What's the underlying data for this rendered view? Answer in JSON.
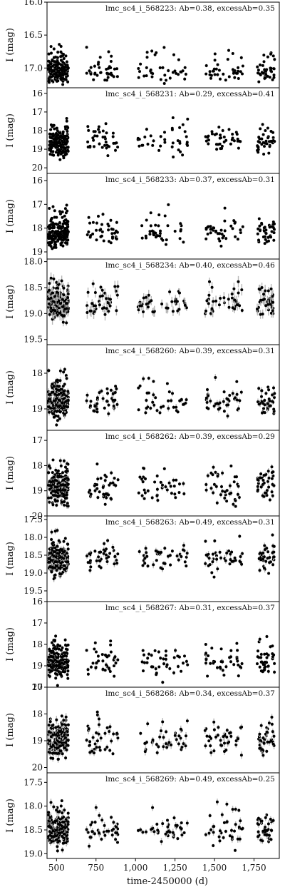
{
  "chart_data": {
    "type": "scatter",
    "x_label": "time-2450000 (d)",
    "x_ticks": [
      500,
      750,
      1000,
      1250,
      1500,
      1750
    ],
    "x_tick_labels": [
      "500",
      "750",
      "1,000",
      "1,250",
      "1,500",
      "1,750"
    ],
    "x_range": [
      440,
      1910
    ],
    "y_label": "I (mag)",
    "y_inverted": true,
    "seasons": [
      [
        450,
        575
      ],
      [
        690,
        890
      ],
      [
        1015,
        1330
      ],
      [
        1440,
        1680
      ],
      [
        1770,
        1880
      ]
    ],
    "marker_color": "#000000",
    "error_bar_color": "#b8b8b8",
    "panels": [
      {
        "label": "lmc_sc4_i_568223: Ab=0.38, excessAb=0.35",
        "ylim": [
          16.0,
          17.3
        ],
        "ticks": [
          16.0,
          16.5,
          17.0
        ],
        "tick_labels": [
          "16.0",
          "16.5",
          "17.0"
        ],
        "mean": 17.05,
        "amp": 0.38,
        "scatter": 0.07,
        "max_err": 0.03
      },
      {
        "label": "lmc_sc4_i_568231: Ab=0.29, excessAb=0.41",
        "ylim": [
          15.7,
          20.3
        ],
        "ticks": [
          16,
          17,
          18,
          19,
          20
        ],
        "tick_labels": [
          "16",
          "17",
          "18",
          "19",
          "20"
        ],
        "mean": 18.6,
        "amp": 1.1,
        "scatter": 0.35,
        "max_err": 0.1
      },
      {
        "label": "lmc_sc4_i_568233: Ab=0.37, excessAb=0.31",
        "ylim": [
          15.7,
          19.3
        ],
        "ticks": [
          16,
          17,
          18,
          19
        ],
        "tick_labels": [
          "16",
          "17",
          "18",
          "19"
        ],
        "mean": 18.2,
        "amp": 0.8,
        "scatter": 0.3,
        "max_err": 0.08
      },
      {
        "label": "lmc_sc4_i_568234: Ab=0.40, excessAb=0.46",
        "ylim": [
          17.95,
          19.6
        ],
        "ticks": [
          18.0,
          18.5,
          19.0,
          19.5
        ],
        "tick_labels": [
          "18.0",
          "18.5",
          "19.0",
          "19.5"
        ],
        "mean": 18.8,
        "amp": 0.4,
        "scatter": 0.12,
        "max_err": 0.12
      },
      {
        "label": "lmc_sc4_i_568260: Ab=0.39, excessAb=0.31",
        "ylim": [
          17.2,
          19.6
        ],
        "ticks": [
          18,
          19
        ],
        "tick_labels": [
          "18",
          "19"
        ],
        "mean": 18.8,
        "amp": 0.7,
        "scatter": 0.2,
        "max_err": 0.1
      },
      {
        "label": "lmc_sc4_i_568262: Ab=0.39, excessAb=0.29",
        "ylim": [
          16.6,
          20.0
        ],
        "ticks": [
          17,
          18,
          19,
          20
        ],
        "tick_labels": [
          "17",
          "18",
          "19",
          "20"
        ],
        "mean": 18.9,
        "amp": 0.9,
        "scatter": 0.3,
        "max_err": 0.12
      },
      {
        "label": "lmc_sc4_i_568263: Ab=0.49, excessAb=0.31",
        "ylim": [
          17.4,
          19.8
        ],
        "ticks": [
          17.5,
          18.0,
          18.5,
          19.0,
          19.5
        ],
        "tick_labels": [
          "17.5",
          "18.0",
          "18.5",
          "19.0",
          "19.5"
        ],
        "mean": 18.6,
        "amp": 0.5,
        "scatter": 0.22,
        "max_err": 0.1
      },
      {
        "label": "lmc_sc4_i_568267: Ab=0.31, excessAb=0.37",
        "ylim": [
          16.0,
          20.0
        ],
        "ticks": [
          16,
          17,
          18,
          19,
          20
        ],
        "tick_labels": [
          "16",
          "17",
          "18",
          "19",
          "20"
        ],
        "mean": 18.8,
        "amp": 0.9,
        "scatter": 0.35,
        "max_err": 0.12
      },
      {
        "label": "lmc_sc4_i_568268: Ab=0.34, excessAb=0.37",
        "ylim": [
          17.0,
          20.2
        ],
        "ticks": [
          17,
          18,
          19,
          20
        ],
        "tick_labels": [
          "17",
          "18",
          "19",
          "20"
        ],
        "mean": 19.0,
        "amp": 0.8,
        "scatter": 0.3,
        "max_err": 0.15
      },
      {
        "label": "lmc_sc4_i_568269: Ab=0.49, excessAb=0.25",
        "ylim": [
          17.3,
          19.1
        ],
        "ticks": [
          17.5,
          18.0,
          18.5,
          19.0
        ],
        "tick_labels": [
          "17.5",
          "18.0",
          "18.5",
          "19.0"
        ],
        "mean": 18.5,
        "amp": 0.45,
        "scatter": 0.15,
        "max_err": 0.08
      }
    ]
  }
}
